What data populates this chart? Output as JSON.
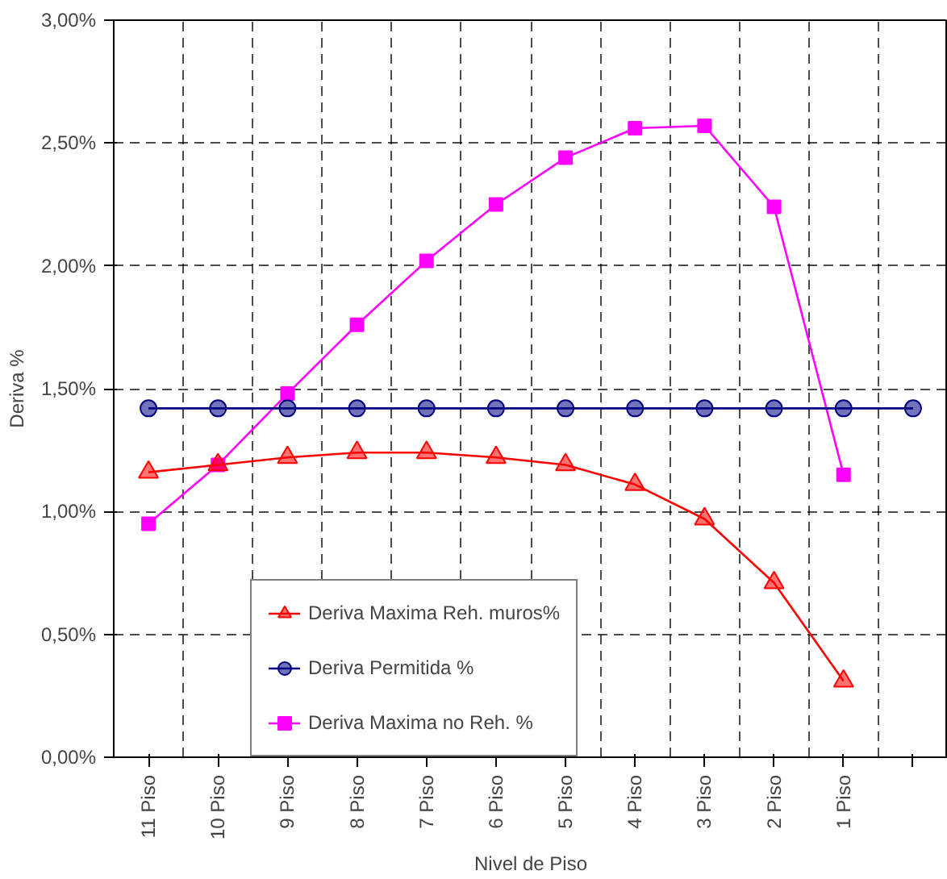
{
  "chart_data": {
    "type": "line",
    "xlabel": "Nivel de Piso",
    "ylabel": "Deriva %",
    "categories": [
      "11 Piso",
      "10 Piso",
      "9 Piso",
      "8 Piso",
      "7 Piso",
      "6 Piso",
      "5 Piso",
      "4 Piso",
      "3 Piso",
      "2 Piso",
      "1 Piso",
      null
    ],
    "series": [
      {
        "name": "Deriva Maxima Reh. muros%",
        "color": "#ff0000",
        "marker": "triangle",
        "values": [
          1.16,
          1.19,
          1.22,
          1.24,
          1.24,
          1.22,
          1.19,
          1.11,
          0.97,
          0.71,
          0.31,
          null
        ]
      },
      {
        "name": "Deriva Permitida %",
        "color": "#000080",
        "marker": "circle",
        "values": [
          1.42,
          1.42,
          1.42,
          1.42,
          1.42,
          1.42,
          1.42,
          1.42,
          1.42,
          1.42,
          1.42,
          1.42
        ]
      },
      {
        "name": "Deriva Maxima no Reh. %",
        "color": "#ff00ff",
        "marker": "square",
        "values": [
          0.95,
          1.19,
          1.48,
          1.76,
          2.02,
          2.25,
          2.44,
          2.56,
          2.57,
          2.24,
          1.15,
          null
        ]
      }
    ],
    "ylim": [
      0,
      3
    ],
    "yticks": [
      {
        "value": 0,
        "label": "0,00%"
      },
      {
        "value": 0.5,
        "label": "0,50%"
      },
      {
        "value": 1,
        "label": "1,00%"
      },
      {
        "value": 1.5,
        "label": "1,50%"
      },
      {
        "value": 2,
        "label": "2,00%"
      },
      {
        "value": 2.5,
        "label": "2,50%"
      },
      {
        "value": 3,
        "label": "3,00%"
      }
    ],
    "grid": true,
    "legend": "bottom left"
  }
}
